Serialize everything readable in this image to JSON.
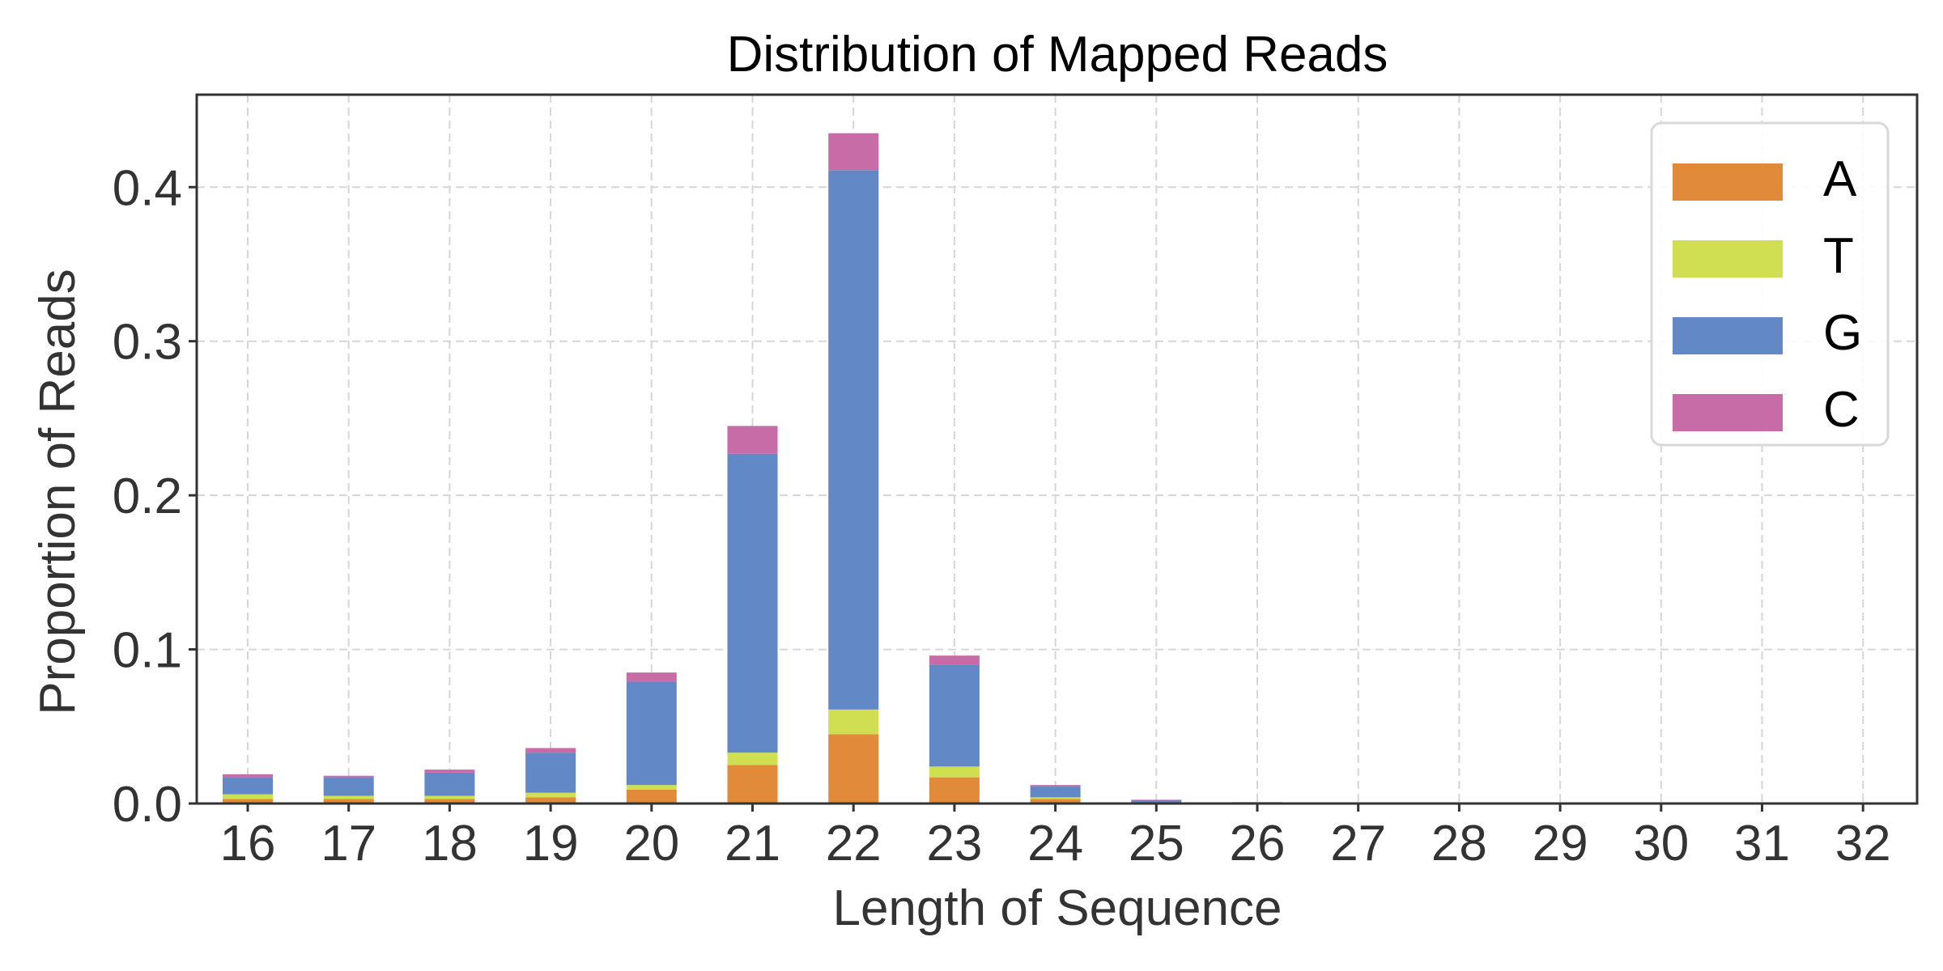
{
  "chart_data": {
    "type": "bar",
    "stacked": true,
    "title": "Distribution of Mapped Reads",
    "xlabel": "Length of Sequence",
    "ylabel": "Proportion of Reads",
    "categories": [
      "16",
      "17",
      "18",
      "19",
      "20",
      "21",
      "22",
      "23",
      "24",
      "25",
      "26",
      "27",
      "28",
      "29",
      "30",
      "31",
      "32"
    ],
    "series": [
      {
        "name": "A",
        "color": "#E08A3A",
        "values": [
          0.003,
          0.003,
          0.003,
          0.004,
          0.009,
          0.025,
          0.045,
          0.017,
          0.003,
          0.0005,
          0.0002,
          0,
          0,
          0,
          0,
          0,
          0
        ]
      },
      {
        "name": "T",
        "color": "#D0DE52",
        "values": [
          0.003,
          0.002,
          0.002,
          0.003,
          0.003,
          0.008,
          0.016,
          0.007,
          0.001,
          0.0002,
          0.0001,
          0,
          0,
          0,
          0,
          0,
          0
        ]
      },
      {
        "name": "G",
        "color": "#6289C5",
        "values": [
          0.011,
          0.012,
          0.015,
          0.026,
          0.067,
          0.194,
          0.35,
          0.066,
          0.007,
          0.0015,
          0.0005,
          0,
          0,
          0,
          0,
          0,
          0
        ]
      },
      {
        "name": "C",
        "color": "#C86CA8",
        "values": [
          0.002,
          0.001,
          0.002,
          0.003,
          0.006,
          0.018,
          0.024,
          0.006,
          0.001,
          0.0003,
          0.0001,
          0,
          0,
          0,
          0,
          0,
          0
        ]
      }
    ],
    "ylim": [
      0,
      0.46
    ],
    "yticks": [
      0.0,
      0.1,
      0.2,
      0.3,
      0.4
    ],
    "ytick_labels": [
      "0.0",
      "0.1",
      "0.2",
      "0.3",
      "0.4"
    ],
    "grid": true,
    "legend_position": "top-right"
  }
}
